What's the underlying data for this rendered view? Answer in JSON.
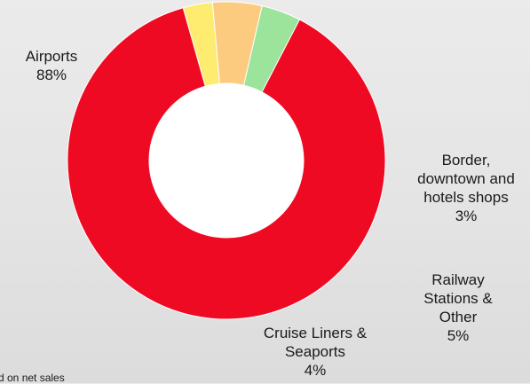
{
  "chart_data": {
    "type": "pie",
    "donut": true,
    "title": "",
    "categories": [
      "Airports",
      "Border, downtown and hotels shops",
      "Railway Stations & Other",
      "Cruise Liners & Seaports"
    ],
    "values": [
      88,
      3,
      5,
      4
    ],
    "colors": [
      "#ef0a23",
      "#fdec6f",
      "#fdcb80",
      "#9ce39c"
    ],
    "labels": [
      {
        "lines": [
          "Airports"
        ],
        "value": "88%"
      },
      {
        "lines": [
          "Border,",
          "downtown and",
          "hotels shops"
        ],
        "value": "3%"
      },
      {
        "lines": [
          "Railway",
          "Stations &",
          "Other"
        ],
        "value": "5%"
      },
      {
        "lines": [
          "Cruise Liners &",
          "Seaports"
        ],
        "value": "4%"
      }
    ]
  },
  "footnote": "d on net sales"
}
